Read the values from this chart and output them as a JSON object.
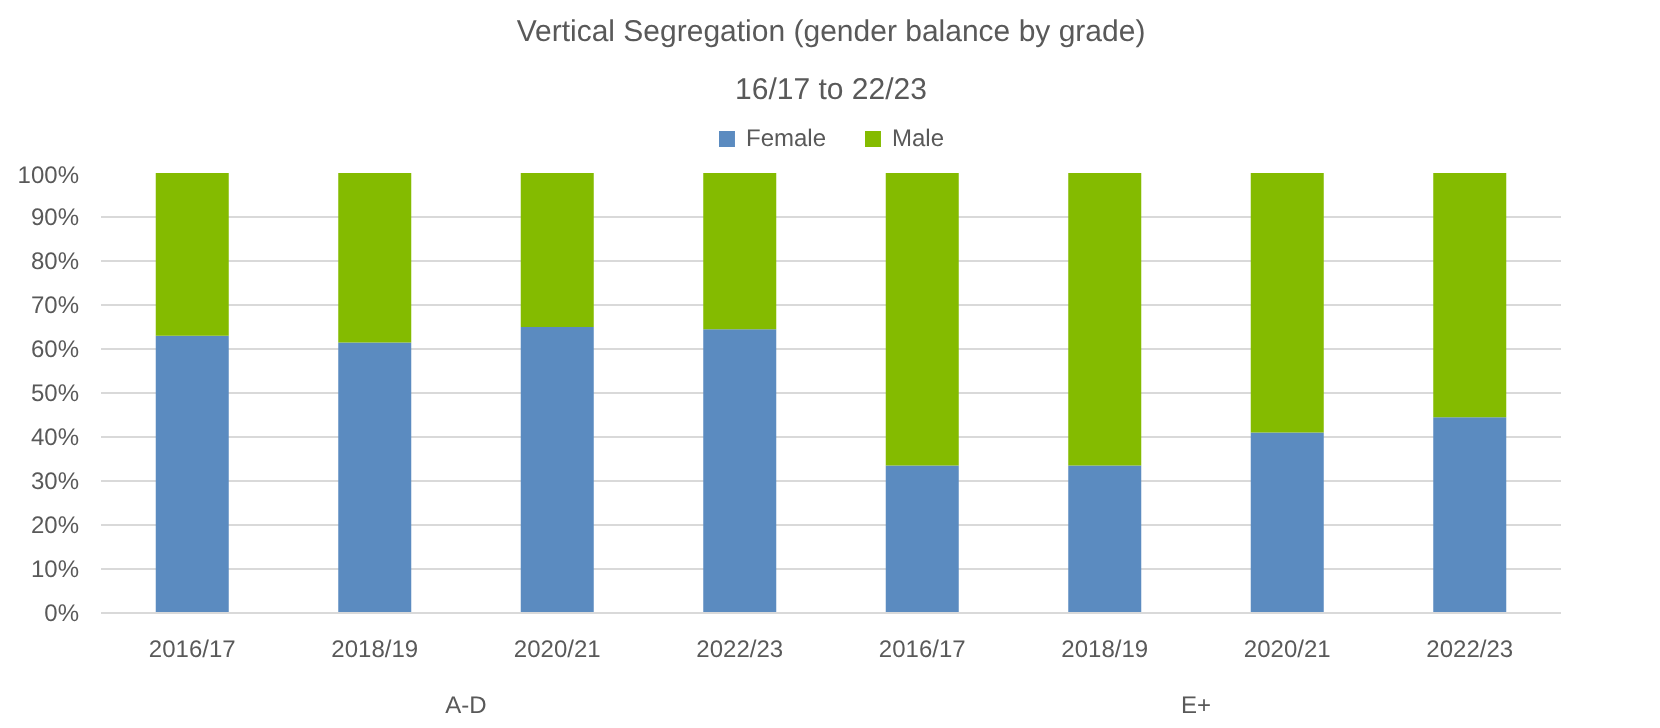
{
  "chart_data": {
    "type": "bar",
    "title": "Vertical Segregation (gender balance by grade)",
    "subtitle": "16/17 to 22/23",
    "categories": [
      "2016/17",
      "2018/19",
      "2020/21",
      "2022/23",
      "2016/17",
      "2018/19",
      "2020/21",
      "2022/23"
    ],
    "annotations": [
      "A-D",
      "E+"
    ],
    "stacked": true,
    "series": [
      {
        "name": "Female",
        "color": "#5b8bc0",
        "values": [
          63,
          61.5,
          65,
          64.5,
          33.5,
          33.5,
          41,
          44.5
        ]
      },
      {
        "name": "Male",
        "color": "#84bb00",
        "values": [
          37,
          38.5,
          35,
          35.5,
          66.5,
          66.5,
          59,
          55.5
        ]
      }
    ],
    "ylim": [
      0,
      100
    ],
    "yticks": [
      {
        "value": 0,
        "label": "0%"
      },
      {
        "value": 10,
        "label": "10%"
      },
      {
        "value": 20,
        "label": "20%"
      },
      {
        "value": 30,
        "label": "30%"
      },
      {
        "value": 40,
        "label": "40%"
      },
      {
        "value": 50,
        "label": "50%"
      },
      {
        "value": 60,
        "label": "60%"
      },
      {
        "value": 70,
        "label": "70%"
      },
      {
        "value": 80,
        "label": "80%"
      },
      {
        "value": 90,
        "label": "90%"
      },
      {
        "value": 100,
        "label": "100%"
      }
    ],
    "grid": "y",
    "legend": "top"
  }
}
